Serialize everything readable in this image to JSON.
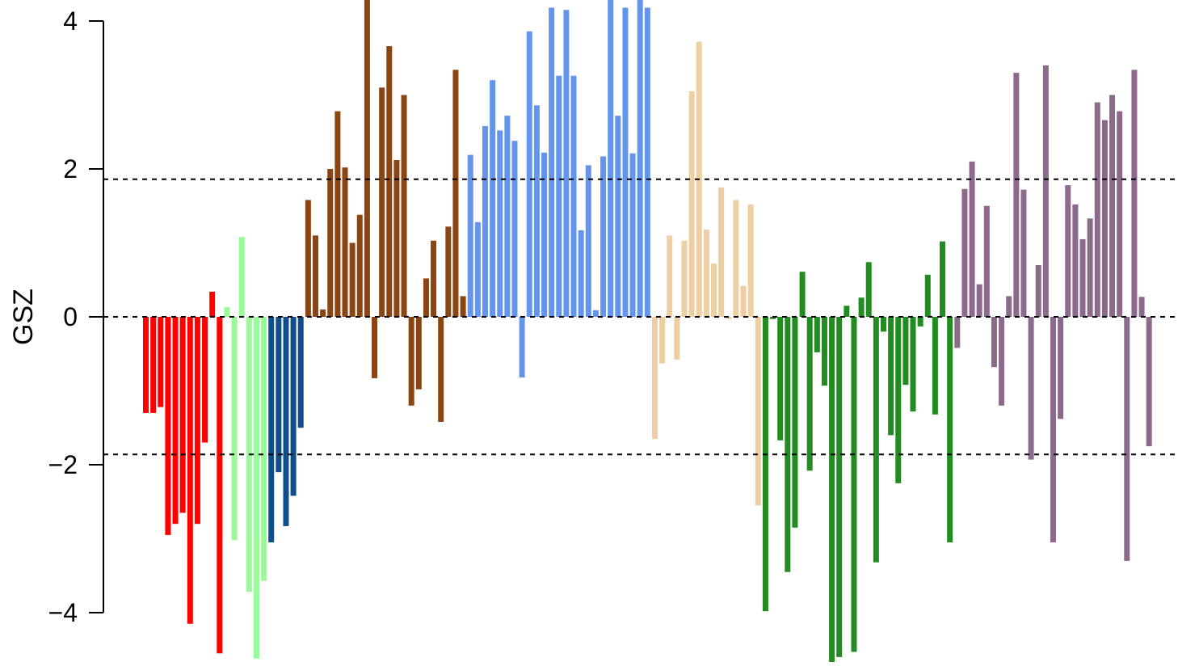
{
  "chart_data": {
    "type": "bar",
    "ylabel": "GSZ",
    "xlabel": "",
    "title": "",
    "ylim": [
      -4.6,
      4.3
    ],
    "y_ticks": [
      -4,
      -2,
      0,
      2,
      4
    ],
    "y_tick_labels": [
      "−4",
      "−2",
      "0",
      "2",
      "4"
    ],
    "reference_lines": [
      1.86,
      0,
      -1.86
    ],
    "grid": false,
    "legend": "none",
    "groups": [
      {
        "color": "#ff0000",
        "values": [
          -1.3,
          -1.3,
          -1.22,
          -2.95,
          -2.8,
          -2.65,
          -4.15,
          -2.8,
          -1.7,
          0.34,
          -4.55
        ]
      },
      {
        "color": "#98fb98",
        "values": [
          0.13,
          -3.02,
          1.08,
          -3.72,
          -4.62,
          -3.57
        ]
      },
      {
        "color": "#104e8b",
        "values": [
          -3.05,
          -2.1,
          -2.83,
          -2.42,
          -1.5
        ]
      },
      {
        "color": "#8b4513",
        "values": [
          1.58,
          1.1,
          0.1,
          2.0,
          2.78,
          2.02,
          1.0,
          1.38,
          4.3,
          -0.83,
          3.1,
          3.66,
          2.12,
          3.0,
          -1.2,
          -0.98,
          0.52,
          1.03,
          -1.42,
          1.22,
          3.34,
          0.28
        ]
      },
      {
        "color": "#6495ed",
        "values": [
          2.19,
          1.28,
          2.58,
          3.2,
          2.52,
          2.72,
          2.38,
          -0.82,
          3.86,
          2.86,
          2.22,
          4.18,
          3.26,
          4.15,
          3.26,
          1.17,
          2.05,
          0.09,
          2.17,
          4.3,
          2.72,
          4.18,
          2.21,
          4.3,
          4.18
        ]
      },
      {
        "color": "#eecfa1",
        "values": [
          -1.65,
          -0.63,
          1.1,
          -0.58,
          1.03,
          3.05,
          3.72,
          1.18,
          0.72,
          1.75,
          -0.03,
          1.58,
          0.42,
          1.52,
          -2.55
        ]
      },
      {
        "color": "#228b22",
        "values": [
          -3.98,
          -0.03,
          -1.67,
          -3.45,
          -2.85,
          0.61,
          -2.08,
          -0.48,
          -0.93,
          -4.72,
          -4.6,
          0.15,
          -4.53,
          0.26,
          0.74,
          -3.32,
          -0.2,
          -1.6,
          -2.25,
          -0.92,
          -1.28,
          -0.13,
          0.57,
          -1.32,
          1.02,
          -3.05
        ]
      },
      {
        "color": "#8b6a8b",
        "values": [
          -0.42,
          1.73,
          2.1,
          0.44,
          1.5,
          -0.68,
          -1.2,
          0.28,
          3.3,
          1.72,
          -1.93,
          0.7,
          3.4,
          -3.05,
          -1.38,
          1.78,
          1.52,
          1.05,
          1.33,
          2.9,
          2.66,
          3.0,
          2.78,
          -3.3,
          3.34,
          0.27,
          -1.75
        ]
      }
    ]
  }
}
